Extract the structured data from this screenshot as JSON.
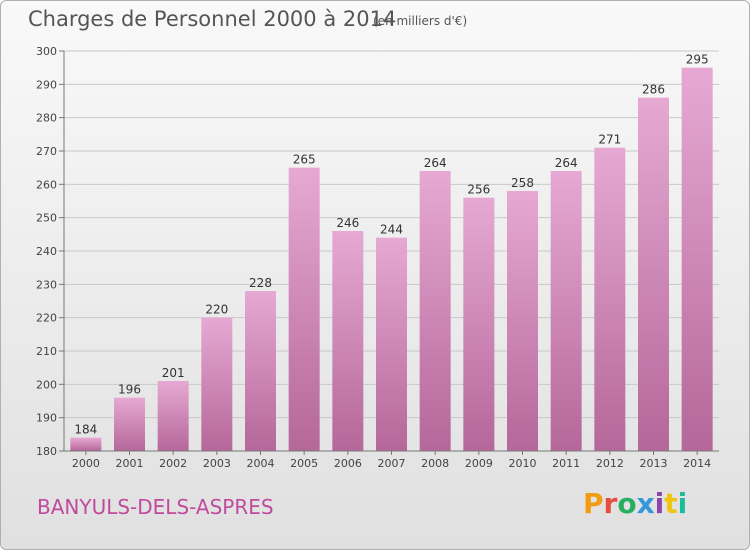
{
  "header": {
    "title": "Charges de Personnel 2000 à 2014",
    "subtitle": "(en milliers d'€)"
  },
  "footer": {
    "commune": "BANYULS-DELS-ASPRES",
    "logo_text": "Proxiti",
    "logo_colors": [
      "#f39c12",
      "#e74c3c",
      "#27ae60",
      "#3498db",
      "#8e44ad",
      "#f1c40f",
      "#1abc9c"
    ]
  },
  "chart_data": {
    "type": "bar",
    "categories": [
      "2000",
      "2001",
      "2002",
      "2003",
      "2004",
      "2005",
      "2006",
      "2007",
      "2008",
      "2009",
      "2010",
      "2011",
      "2012",
      "2013",
      "2014"
    ],
    "values": [
      184,
      196,
      201,
      220,
      228,
      265,
      246,
      244,
      264,
      256,
      258,
      264,
      271,
      286,
      295
    ],
    "title": "Charges de Personnel 2000 à 2014",
    "subtitle": "(en milliers d'€)",
    "xlabel": "",
    "ylabel": "",
    "ylim": [
      180,
      300
    ],
    "yticks": [
      180,
      190,
      200,
      210,
      220,
      230,
      240,
      250,
      260,
      270,
      280,
      290,
      300
    ],
    "grid": true,
    "bar_color": "#d98fbf"
  }
}
